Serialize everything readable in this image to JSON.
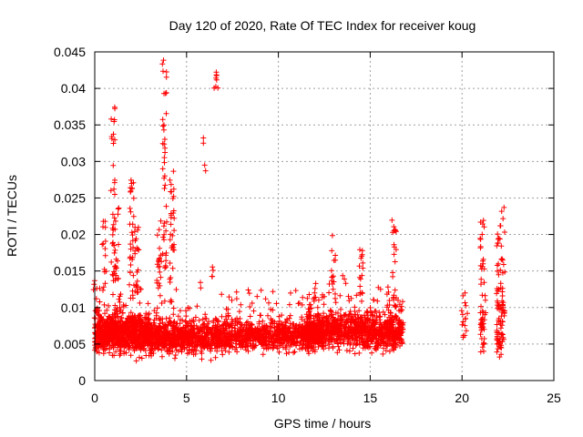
{
  "chart_data": {
    "type": "scatter",
    "title": "Day 120 of 2020, Rate Of TEC Index for receiver koug",
    "xlabel": "GPS time / hours",
    "ylabel": "ROTI / TECUs",
    "xlim": [
      0,
      25
    ],
    "ylim": [
      0,
      0.045
    ],
    "x_ticks": [
      0,
      5,
      10,
      15,
      20,
      25
    ],
    "x_tick_labels": [
      "0",
      "5",
      "10",
      "15",
      "20",
      "25"
    ],
    "y_ticks": [
      0,
      0.005,
      0.01,
      0.015,
      0.02,
      0.025,
      0.03,
      0.035,
      0.04,
      0.045
    ],
    "y_tick_labels": [
      "0",
      "0.005",
      "0.01",
      "0.015",
      "0.02",
      "0.025",
      "0.03",
      "0.035",
      "0.04",
      "0.045"
    ],
    "grid": true,
    "marker": "+",
    "color": "#ff0000",
    "series": [
      {
        "name": "ROTI",
        "clusters": [
          {
            "x_range": [
              0.0,
              3.0
            ],
            "y_center": 0.0065,
            "y_spread": 0.0025,
            "count": 900
          },
          {
            "x_range": [
              3.0,
              7.5
            ],
            "y_center": 0.006,
            "y_spread": 0.0022,
            "count": 900
          },
          {
            "x_range": [
              7.6,
              12.5
            ],
            "y_center": 0.0062,
            "y_spread": 0.002,
            "count": 800
          },
          {
            "x_range": [
              11.5,
              16.8
            ],
            "y_center": 0.0068,
            "y_spread": 0.0025,
            "count": 1000
          },
          {
            "x_range": [
              20.0,
              20.3
            ],
            "y_center": 0.0075,
            "y_spread": 0.0025,
            "count": 10
          },
          {
            "x_range": [
              21.0,
              21.3
            ],
            "y_center": 0.0075,
            "y_spread": 0.003,
            "count": 30
          },
          {
            "x_range": [
              21.9,
              22.3
            ],
            "y_center": 0.0085,
            "y_spread": 0.004,
            "count": 45
          }
        ],
        "columns": [
          {
            "x": 0.05,
            "y_min": 0.004,
            "y_max": 0.015,
            "n": 10
          },
          {
            "x": 0.5,
            "y_min": 0.01,
            "y_max": 0.022,
            "n": 15
          },
          {
            "x": 1.0,
            "y_min": 0.012,
            "y_max": 0.0385,
            "n": 35
          },
          {
            "x": 1.2,
            "y_min": 0.012,
            "y_max": 0.024,
            "n": 15
          },
          {
            "x": 2.0,
            "y_min": 0.012,
            "y_max": 0.028,
            "n": 30
          },
          {
            "x": 2.3,
            "y_min": 0.012,
            "y_max": 0.021,
            "n": 20
          },
          {
            "x": 3.5,
            "y_min": 0.012,
            "y_max": 0.022,
            "n": 20
          },
          {
            "x": 3.8,
            "y_min": 0.014,
            "y_max": 0.044,
            "n": 40
          },
          {
            "x": 4.2,
            "y_min": 0.013,
            "y_max": 0.029,
            "n": 30
          },
          {
            "x": 6.0,
            "y_min": 0.027,
            "y_max": 0.034,
            "n": 4
          },
          {
            "x": 6.6,
            "y_min": 0.04,
            "y_max": 0.043,
            "n": 8
          },
          {
            "x": 6.5,
            "y_min": 0.014,
            "y_max": 0.016,
            "n": 4
          },
          {
            "x": 13.0,
            "y_min": 0.011,
            "y_max": 0.02,
            "n": 15
          },
          {
            "x": 14.5,
            "y_min": 0.011,
            "y_max": 0.0185,
            "n": 15
          },
          {
            "x": 16.3,
            "y_min": 0.01,
            "y_max": 0.0225,
            "n": 20
          },
          {
            "x": 20.1,
            "y_min": 0.0048,
            "y_max": 0.0145,
            "n": 6
          },
          {
            "x": 21.1,
            "y_min": 0.003,
            "y_max": 0.022,
            "n": 25
          },
          {
            "x": 22.0,
            "y_min": 0.003,
            "y_max": 0.0215,
            "n": 25
          },
          {
            "x": 22.2,
            "y_min": 0.004,
            "y_max": 0.024,
            "n": 25
          }
        ]
      }
    ]
  }
}
